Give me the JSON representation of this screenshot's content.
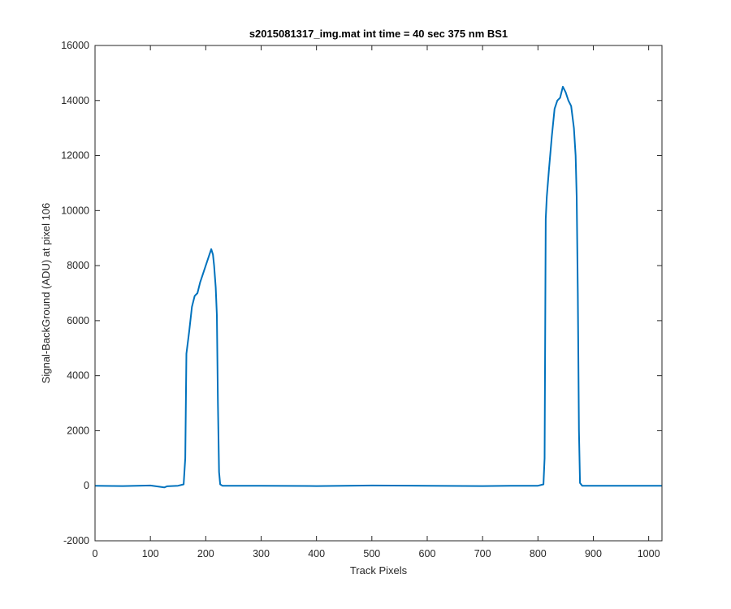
{
  "chart_data": {
    "type": "line",
    "title": "s2015081317_img.mat int time = 40 sec  375 nm BS1",
    "xlabel": "Track Pixels",
    "ylabel": "Signal-BackGround (ADU) at pixel 106",
    "xlim": [
      0,
      1024
    ],
    "ylim": [
      -2000,
      16000
    ],
    "xticks": [
      0,
      100,
      200,
      300,
      400,
      500,
      600,
      700,
      800,
      900,
      1000
    ],
    "xtick_labels": [
      "0",
      "100",
      "200",
      "300",
      "400",
      "500",
      "600",
      "700",
      "800",
      "900",
      "1000"
    ],
    "yticks": [
      -2000,
      0,
      2000,
      4000,
      6000,
      8000,
      10000,
      12000,
      14000,
      16000
    ],
    "ytick_labels": [
      "-2000",
      "0",
      "2000",
      "4000",
      "6000",
      "8000",
      "10000",
      "12000",
      "14000",
      "16000"
    ],
    "grid": false,
    "series": [
      {
        "color": "#0072bd",
        "x": [
          0,
          50,
          100,
          125,
          130,
          150,
          160,
          163,
          165,
          170,
          175,
          180,
          185,
          190,
          195,
          200,
          205,
          210,
          213,
          215,
          218,
          220,
          222,
          224,
          226,
          230,
          300,
          400,
          500,
          600,
          700,
          750,
          800,
          810,
          812,
          814,
          816,
          820,
          825,
          830,
          835,
          840,
          845,
          850,
          855,
          860,
          865,
          868,
          870,
          872,
          874,
          876,
          880,
          900,
          950,
          1024
        ],
        "y": [
          0,
          -10,
          10,
          -60,
          -20,
          0,
          50,
          1000,
          4800,
          5600,
          6500,
          6900,
          7000,
          7400,
          7700,
          8000,
          8300,
          8600,
          8400,
          8000,
          7200,
          6200,
          3000,
          500,
          50,
          0,
          0,
          -10,
          10,
          0,
          -10,
          0,
          0,
          50,
          1000,
          9700,
          10500,
          11500,
          12700,
          13700,
          14000,
          14100,
          14500,
          14300,
          14000,
          13800,
          13000,
          12000,
          10500,
          7000,
          2000,
          100,
          0,
          0,
          0,
          0
        ]
      }
    ]
  }
}
